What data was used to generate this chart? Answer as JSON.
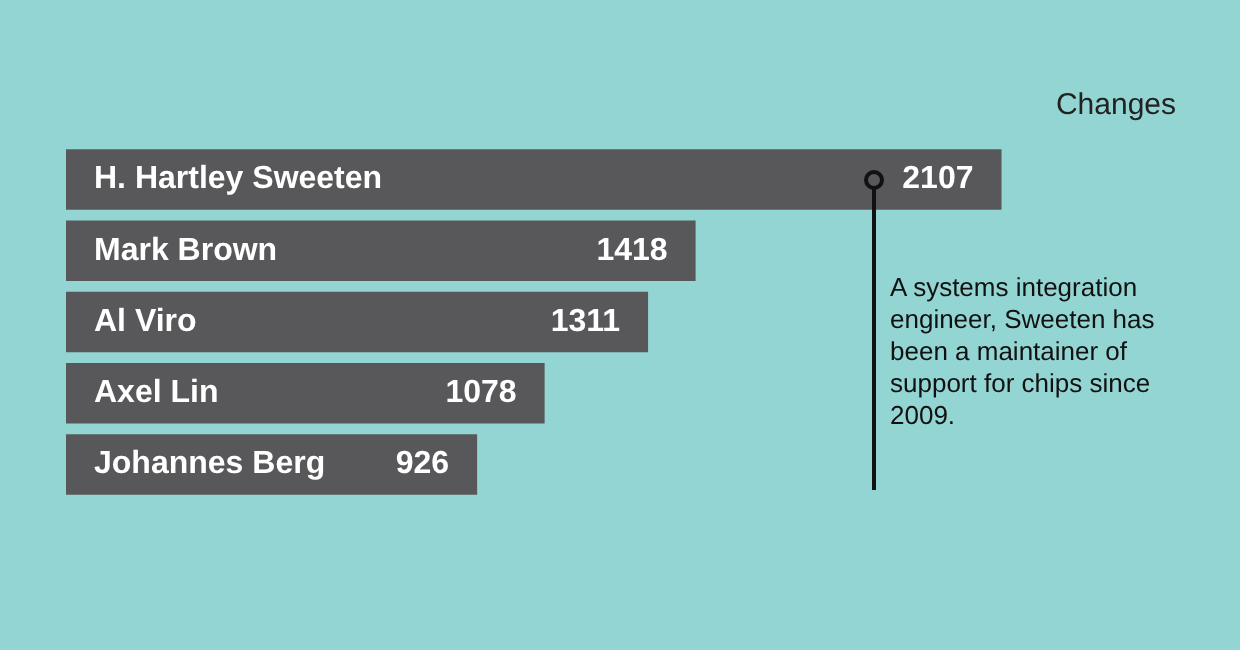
{
  "chart_data": {
    "type": "bar",
    "orientation": "horizontal",
    "xlabel": "Changes",
    "categories": [
      "H. Hartley Sweeten",
      "Mark Brown",
      "Al Viro",
      "Axel Lin",
      "Johannes Berg"
    ],
    "values": [
      2107,
      1418,
      1311,
      1078,
      926
    ],
    "color": "#58585a",
    "data_labels": true,
    "legend": false,
    "annotations": [
      "A systems integration engineer, Sweeten has been a maintainer of support for chips since 2009."
    ]
  }
}
